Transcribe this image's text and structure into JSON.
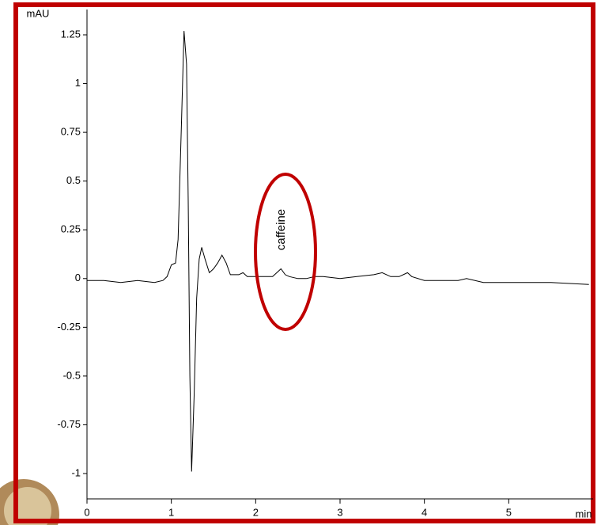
{
  "chart_data": {
    "type": "line",
    "y_label": "mAU",
    "x_label": "min",
    "annotation": "caffeine",
    "x": [
      0,
      0.2,
      0.4,
      0.6,
      0.8,
      0.9,
      0.95,
      1.0,
      1.05,
      1.08,
      1.12,
      1.15,
      1.18,
      1.2,
      1.22,
      1.24,
      1.27,
      1.3,
      1.33,
      1.36,
      1.4,
      1.45,
      1.5,
      1.55,
      1.6,
      1.65,
      1.7,
      1.8,
      1.85,
      1.9,
      2.0,
      2.1,
      2.2,
      2.25,
      2.3,
      2.35,
      2.4,
      2.5,
      2.6,
      2.7,
      2.8,
      3.0,
      3.2,
      3.4,
      3.5,
      3.6,
      3.7,
      3.8,
      3.85,
      4.0,
      4.2,
      4.4,
      4.5,
      4.7,
      5.0,
      5.5,
      5.95
    ],
    "series": [
      {
        "color": "#000000",
        "values": [
          -0.01,
          -0.01,
          -0.02,
          -0.01,
          -0.02,
          -0.01,
          0.01,
          0.07,
          0.08,
          0.2,
          0.8,
          1.27,
          1.1,
          0.4,
          -0.5,
          -0.99,
          -0.6,
          -0.1,
          0.1,
          0.16,
          0.1,
          0.03,
          0.05,
          0.08,
          0.12,
          0.08,
          0.02,
          0.02,
          0.03,
          0.01,
          0.01,
          0.01,
          0.01,
          0.03,
          0.05,
          0.02,
          0.01,
          0.0,
          0.0,
          0.01,
          0.01,
          0.0,
          0.01,
          0.02,
          0.03,
          0.01,
          0.01,
          0.03,
          0.01,
          -0.01,
          -0.01,
          -0.01,
          0.0,
          -0.02,
          -0.02,
          -0.02,
          -0.03
        ]
      }
    ],
    "xlim": [
      0,
      6
    ],
    "xticks": [
      0,
      1,
      2,
      3,
      4,
      5
    ],
    "ylim": [
      -1.13,
      1.38
    ],
    "yticks": [
      1.25,
      1,
      0.75,
      0.5,
      0.25,
      0,
      -0.25,
      -0.5,
      -0.75,
      -1
    ],
    "frame_color": "#c00000",
    "annotation_color": "#c00000"
  }
}
